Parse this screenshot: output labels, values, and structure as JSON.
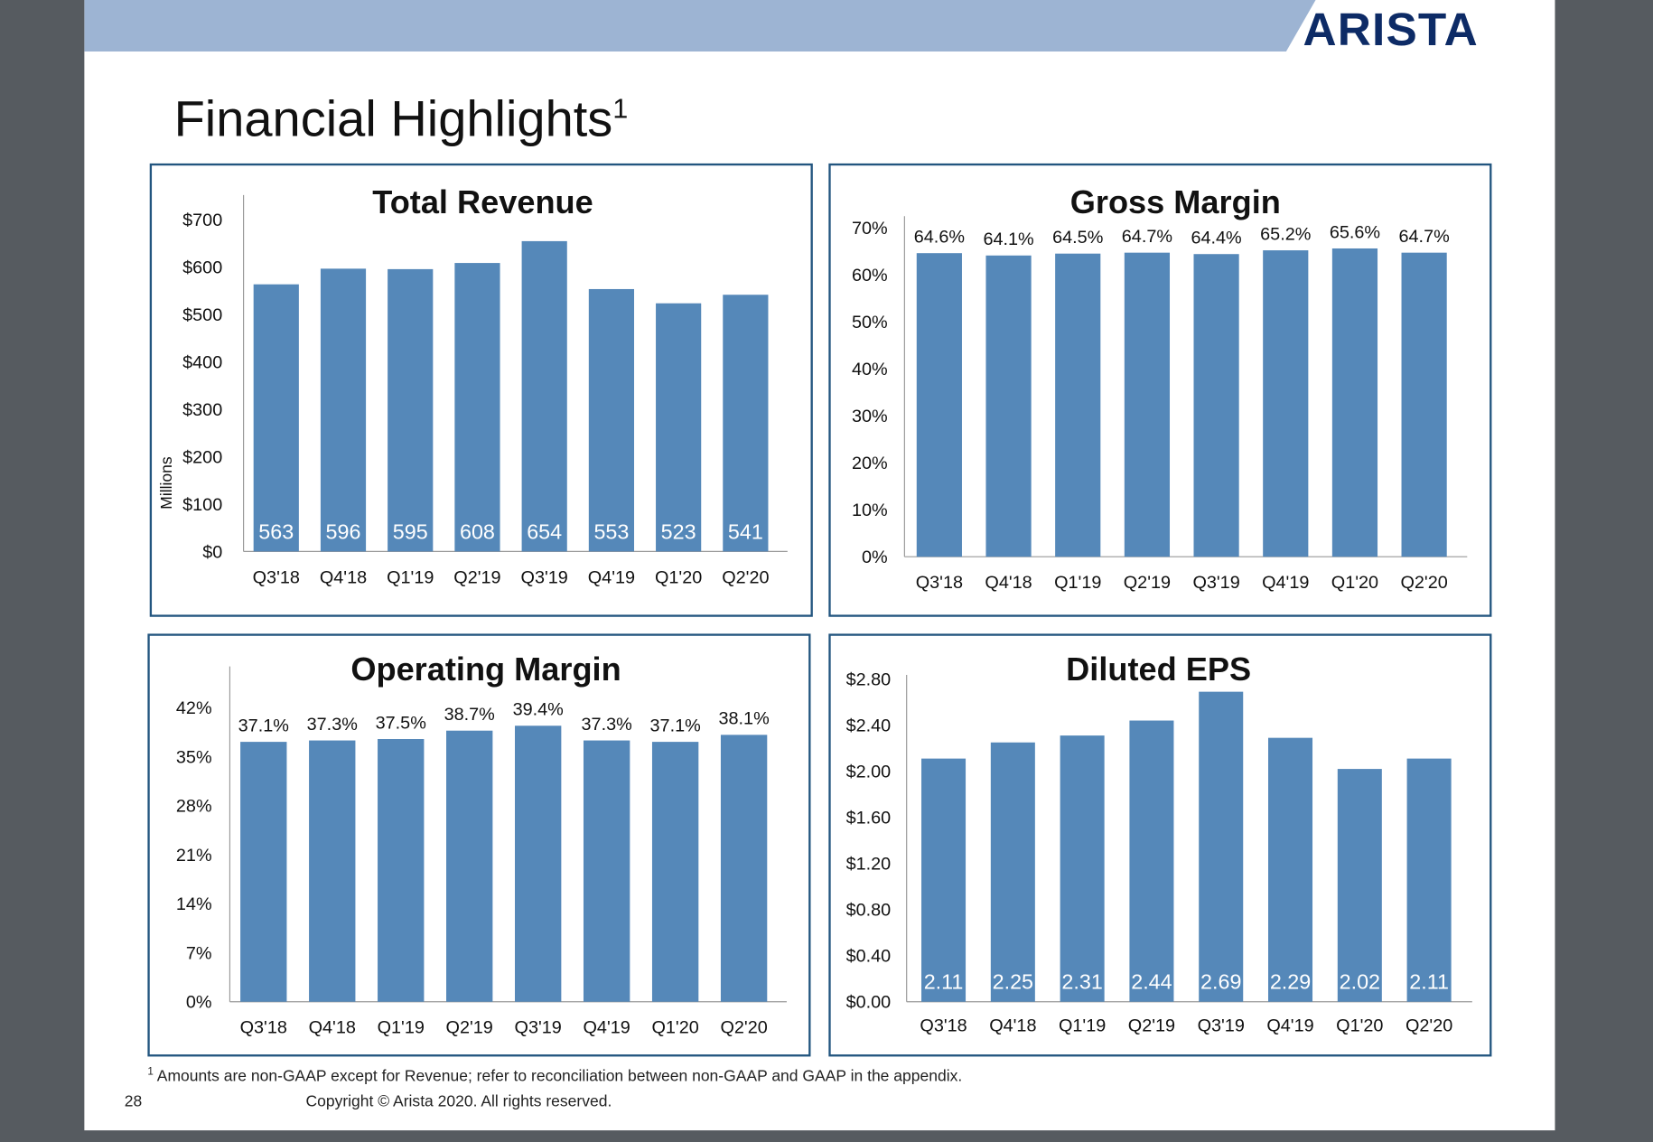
{
  "brand": "ARISTA",
  "title": "Financial Highlights",
  "title_sup": "1",
  "footnote_marker": "1",
  "footnote": "Amounts are non-GAAP except for Revenue; refer to reconciliation between non-GAAP and GAAP in the appendix.",
  "page_number": "28",
  "copyright": "Copyright © Arista 2020. All rights reserved.",
  "colors": {
    "bar": "#5588b9",
    "panel_border": "#22557f",
    "banner": "#9db4d3",
    "logo": "#0d2b66"
  },
  "chart_data": [
    {
      "type": "bar",
      "title": "Total Revenue",
      "ylabel": "Millions",
      "categories": [
        "Q3'18",
        "Q4'18",
        "Q1'19",
        "Q2'19",
        "Q3'19",
        "Q4'19",
        "Q1'20",
        "Q2'20"
      ],
      "values": [
        563,
        596,
        595,
        608,
        654,
        553,
        523,
        541
      ],
      "data_labels": [
        "563",
        "596",
        "595",
        "608",
        "654",
        "553",
        "523",
        "541"
      ],
      "data_label_position": "inside-bottom",
      "ylim": [
        0,
        700
      ],
      "yticks": [
        "$0",
        "$100",
        "$200",
        "$300",
        "$400",
        "$500",
        "$600",
        "$700"
      ],
      "grid": false
    },
    {
      "type": "bar",
      "title": "Gross Margin",
      "categories": [
        "Q3'18",
        "Q4'18",
        "Q1'19",
        "Q2'19",
        "Q3'19",
        "Q4'19",
        "Q1'20",
        "Q2'20"
      ],
      "values": [
        64.6,
        64.1,
        64.5,
        64.7,
        64.4,
        65.2,
        65.6,
        64.7
      ],
      "data_labels": [
        "64.6%",
        "64.1%",
        "64.5%",
        "64.7%",
        "64.4%",
        "65.2%",
        "65.6%",
        "64.7%"
      ],
      "data_label_position": "above",
      "ylim": [
        0,
        70
      ],
      "yticks": [
        "0%",
        "10%",
        "20%",
        "30%",
        "40%",
        "50%",
        "60%",
        "70%"
      ],
      "grid": false
    },
    {
      "type": "bar",
      "title": "Operating Margin",
      "categories": [
        "Q3'18",
        "Q4'18",
        "Q1'19",
        "Q2'19",
        "Q3'19",
        "Q4'19",
        "Q1'20",
        "Q2'20"
      ],
      "values": [
        37.1,
        37.3,
        37.5,
        38.7,
        39.4,
        37.3,
        37.1,
        38.1
      ],
      "data_labels": [
        "37.1%",
        "37.3%",
        "37.5%",
        "38.7%",
        "39.4%",
        "37.3%",
        "37.1%",
        "38.1%"
      ],
      "data_label_position": "above",
      "ylim": [
        0,
        42
      ],
      "yticks": [
        "0%",
        "7%",
        "14%",
        "21%",
        "28%",
        "35%",
        "42%"
      ],
      "grid": false
    },
    {
      "type": "bar",
      "title": "Diluted EPS",
      "categories": [
        "Q3'18",
        "Q4'18",
        "Q1'19",
        "Q2'19",
        "Q3'19",
        "Q4'19",
        "Q1'20",
        "Q2'20"
      ],
      "values": [
        2.11,
        2.25,
        2.31,
        2.44,
        2.69,
        2.29,
        2.02,
        2.11
      ],
      "data_labels": [
        "2.11",
        "2.25",
        "2.31",
        "2.44",
        "2.69",
        "2.29",
        "2.02",
        "2.11"
      ],
      "data_label_position": "inside-bottom",
      "ylim": [
        0,
        2.8
      ],
      "yticks": [
        "$0.00",
        "$0.40",
        "$0.80",
        "$1.20",
        "$1.60",
        "$2.00",
        "$2.40",
        "$2.80"
      ],
      "grid": false
    }
  ]
}
